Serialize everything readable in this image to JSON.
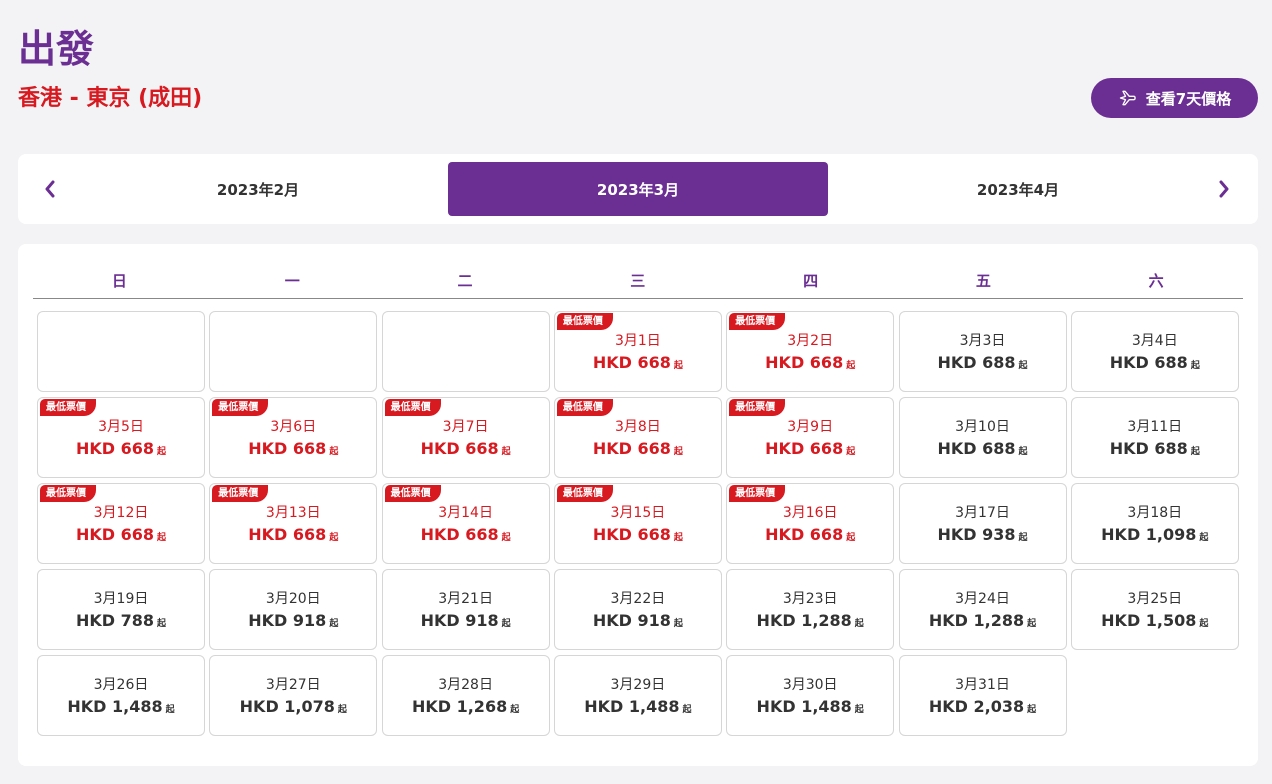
{
  "header": {
    "title": "出發",
    "route": "香港 - 東京 (成田)",
    "week_button_label": "查看7天價格"
  },
  "months": {
    "prev_icon": "chevron-left-icon",
    "next_icon": "chevron-right-icon",
    "tabs": [
      "2023年2月",
      "2023年3月",
      "2023年4月"
    ],
    "selected": "2023年3月"
  },
  "calendar": {
    "weekdays": [
      "日",
      "一",
      "二",
      "三",
      "四",
      "五",
      "六"
    ],
    "low_fare_label": "最低票價",
    "from_label": "起",
    "accent_color": "#6b2f93",
    "low_fare_color": "#d71920",
    "leading_blanks": 3,
    "days": [
      {
        "date": "3月1日",
        "price": "HKD 668",
        "lowest": true
      },
      {
        "date": "3月2日",
        "price": "HKD 668",
        "lowest": true
      },
      {
        "date": "3月3日",
        "price": "HKD 688",
        "lowest": false
      },
      {
        "date": "3月4日",
        "price": "HKD 688",
        "lowest": false
      },
      {
        "date": "3月5日",
        "price": "HKD 668",
        "lowest": true
      },
      {
        "date": "3月6日",
        "price": "HKD 668",
        "lowest": true
      },
      {
        "date": "3月7日",
        "price": "HKD 668",
        "lowest": true
      },
      {
        "date": "3月8日",
        "price": "HKD 668",
        "lowest": true
      },
      {
        "date": "3月9日",
        "price": "HKD 668",
        "lowest": true
      },
      {
        "date": "3月10日",
        "price": "HKD 688",
        "lowest": false
      },
      {
        "date": "3月11日",
        "price": "HKD 688",
        "lowest": false
      },
      {
        "date": "3月12日",
        "price": "HKD 668",
        "lowest": true
      },
      {
        "date": "3月13日",
        "price": "HKD 668",
        "lowest": true
      },
      {
        "date": "3月14日",
        "price": "HKD 668",
        "lowest": true
      },
      {
        "date": "3月15日",
        "price": "HKD 668",
        "lowest": true
      },
      {
        "date": "3月16日",
        "price": "HKD 668",
        "lowest": true
      },
      {
        "date": "3月17日",
        "price": "HKD 938",
        "lowest": false
      },
      {
        "date": "3月18日",
        "price": "HKD 1,098",
        "lowest": false
      },
      {
        "date": "3月19日",
        "price": "HKD 788",
        "lowest": false
      },
      {
        "date": "3月20日",
        "price": "HKD 918",
        "lowest": false
      },
      {
        "date": "3月21日",
        "price": "HKD 918",
        "lowest": false
      },
      {
        "date": "3月22日",
        "price": "HKD 918",
        "lowest": false
      },
      {
        "date": "3月23日",
        "price": "HKD 1,288",
        "lowest": false
      },
      {
        "date": "3月24日",
        "price": "HKD 1,288",
        "lowest": false
      },
      {
        "date": "3月25日",
        "price": "HKD 1,508",
        "lowest": false
      },
      {
        "date": "3月26日",
        "price": "HKD 1,488",
        "lowest": false
      },
      {
        "date": "3月27日",
        "price": "HKD 1,078",
        "lowest": false
      },
      {
        "date": "3月28日",
        "price": "HKD 1,268",
        "lowest": false
      },
      {
        "date": "3月29日",
        "price": "HKD 1,488",
        "lowest": false
      },
      {
        "date": "3月30日",
        "price": "HKD 1,488",
        "lowest": false
      },
      {
        "date": "3月31日",
        "price": "HKD 2,038",
        "lowest": false
      }
    ]
  }
}
